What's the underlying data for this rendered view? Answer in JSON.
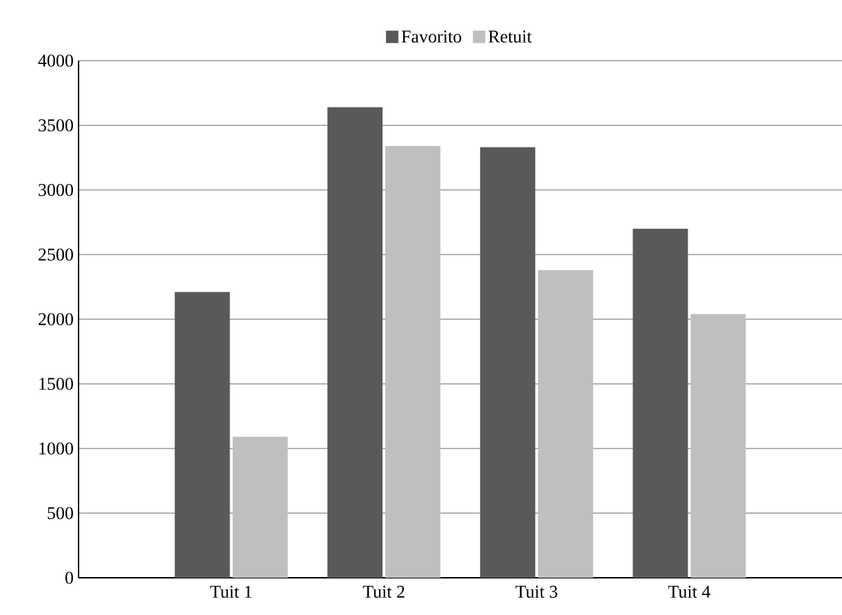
{
  "chart_data": {
    "type": "bar",
    "categories": [
      "Tuit 1",
      "Tuit 2",
      "Tuit 3",
      "Tuit 4"
    ],
    "series": [
      {
        "name": "Favorito",
        "color": "#595959",
        "values": [
          2210,
          3640,
          3330,
          2700
        ]
      },
      {
        "name": "Retuit",
        "color": "#bfbfbf",
        "values": [
          1090,
          3340,
          2380,
          2040
        ]
      }
    ],
    "ylim": [
      0,
      4000
    ],
    "yticks": [
      0,
      500,
      1000,
      1500,
      2000,
      2500,
      3000,
      3500,
      4000
    ],
    "grid": "y",
    "legend": "top"
  }
}
